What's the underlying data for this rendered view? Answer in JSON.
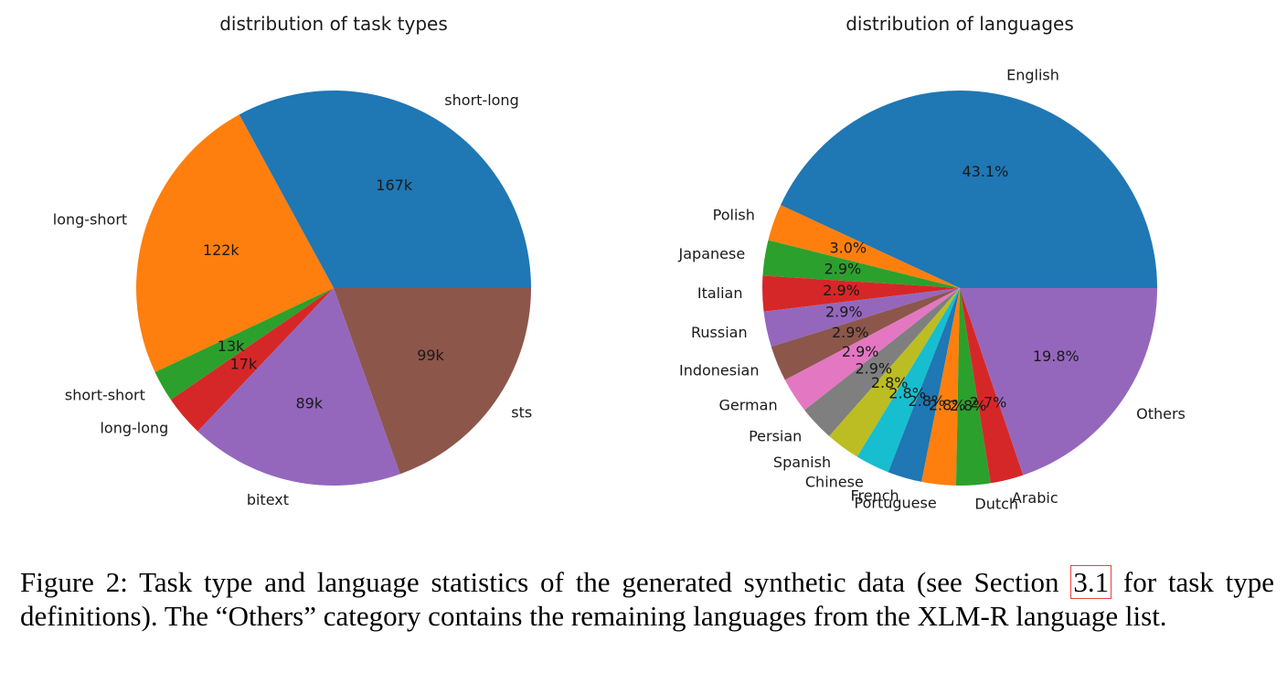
{
  "chart_data": [
    {
      "type": "pie",
      "title": "distribution of task types",
      "slices": [
        {
          "label": "short-long",
          "value": 167,
          "text": "167k",
          "color": "#1f77b4"
        },
        {
          "label": "long-short",
          "value": 122,
          "text": "122k",
          "color": "#ff7f0e"
        },
        {
          "label": "short-short",
          "value": 13,
          "text": "13k",
          "color": "#2ca02c"
        },
        {
          "label": "long-long",
          "value": 17,
          "text": "17k",
          "color": "#d62728"
        },
        {
          "label": "bitext",
          "value": 89,
          "text": "89k",
          "color": "#9467bd"
        },
        {
          "label": "sts",
          "value": 99,
          "text": "99k",
          "color": "#8c564b"
        }
      ]
    },
    {
      "type": "pie",
      "title": "distribution of languages",
      "slices": [
        {
          "label": "English",
          "value": 43.1,
          "text": "43.1%",
          "color": "#1f77b4"
        },
        {
          "label": "Polish",
          "value": 3.0,
          "text": "3.0%",
          "color": "#ff7f0e"
        },
        {
          "label": "Japanese",
          "value": 2.9,
          "text": "2.9%",
          "color": "#2ca02c"
        },
        {
          "label": "Italian",
          "value": 2.9,
          "text": "2.9%",
          "color": "#d62728"
        },
        {
          "label": "Russian",
          "value": 2.9,
          "text": "2.9%",
          "color": "#9467bd"
        },
        {
          "label": "Indonesian",
          "value": 2.9,
          "text": "2.9%",
          "color": "#8c564b"
        },
        {
          "label": "German",
          "value": 2.9,
          "text": "2.9%",
          "color": "#e377c2"
        },
        {
          "label": "Persian",
          "value": 2.9,
          "text": "2.9%",
          "color": "#7f7f7f"
        },
        {
          "label": "Spanish",
          "value": 2.8,
          "text": "2.8%",
          "color": "#bcbd22"
        },
        {
          "label": "Chinese",
          "value": 2.8,
          "text": "2.8%",
          "color": "#17becf"
        },
        {
          "label": "French",
          "value": 2.8,
          "text": "2.8%",
          "color": "#1f77b4"
        },
        {
          "label": "Portuguese",
          "value": 2.8,
          "text": "2.8%",
          "color": "#ff7f0e"
        },
        {
          "label": "Dutch",
          "value": 2.8,
          "text": "2.8%",
          "color": "#2ca02c"
        },
        {
          "label": "Arabic",
          "value": 2.7,
          "text": "2.7%",
          "color": "#d62728"
        },
        {
          "label": "Others",
          "value": 19.8,
          "text": "19.8%",
          "color": "#9467bd"
        }
      ]
    }
  ],
  "caption": {
    "before": "Figure 2: Task type and language statistics of the generated synthetic data (see Section ",
    "ref": "3.1",
    "after": " for task type definitions). The “Others” category contains the remaining languages from the XLM-R language list."
  }
}
